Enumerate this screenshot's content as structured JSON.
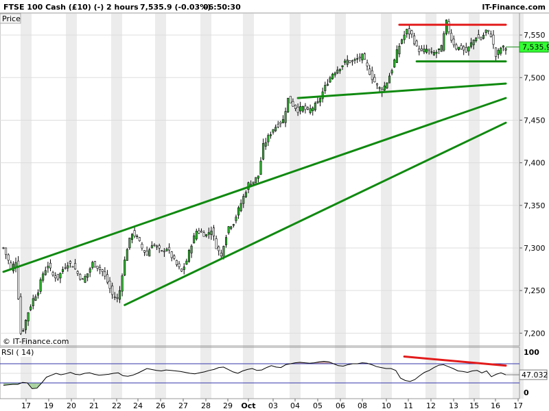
{
  "header": {
    "instrument": "FTSE 100 Cash (£10) (-)",
    "timeframe": "2 hours",
    "price_change": "7,535.9 (-0.03%)",
    "time": "06:50:30",
    "brand": "IT-Finance.com"
  },
  "price_tab": "Price",
  "watermark": "© IT-Finance.com",
  "last_price_label": "7,535.9",
  "rsi_panel": {
    "title": "RSI ( 14)",
    "current_label": "47.032",
    "tick_labels": [
      "100",
      "50",
      "0"
    ]
  },
  "x_axis_labels": [
    "17",
    "19",
    "20",
    "21",
    "22",
    "24",
    "26",
    "27",
    "28",
    "29",
    "Oct",
    "03",
    "04",
    "05",
    "06",
    "08",
    "10",
    "11",
    "12",
    "13",
    "15",
    "16",
    "17"
  ],
  "colors": {
    "candle_up": "#00a000",
    "candle_down": "#000000",
    "trendline": "#0f8a0f",
    "resistance": "#e21b1b",
    "rsi_line": "#000000",
    "rsi_overbought_fill": "#c9a6a6",
    "rsi_oversold_fill": "#a9d39e",
    "stripe": "#ececec",
    "last_price_box": "#33ff33"
  },
  "chart_data": {
    "type": "candlestick",
    "y_tick_labels": [
      "7,550",
      "7,500",
      "7,450",
      "7,400",
      "7,350",
      "7,300",
      "7,250",
      "7,200"
    ],
    "ylim": [
      7185,
      7575
    ],
    "last_price": 7535.9,
    "anchors": [
      [
        0,
        7300
      ],
      [
        2,
        7285
      ],
      [
        3,
        7275
      ],
      [
        5,
        7285
      ],
      [
        7,
        7200
      ],
      [
        8,
        7205
      ],
      [
        10,
        7225
      ],
      [
        12,
        7240
      ],
      [
        14,
        7250
      ],
      [
        16,
        7270
      ],
      [
        18,
        7280
      ],
      [
        20,
        7268
      ],
      [
        22,
        7265
      ],
      [
        24,
        7275
      ],
      [
        26,
        7282
      ],
      [
        28,
        7280
      ],
      [
        30,
        7270
      ],
      [
        32,
        7262
      ],
      [
        34,
        7270
      ],
      [
        36,
        7282
      ],
      [
        38,
        7278
      ],
      [
        40,
        7272
      ],
      [
        42,
        7260
      ],
      [
        44,
        7245
      ],
      [
        46,
        7240
      ],
      [
        47,
        7250
      ],
      [
        48,
        7270
      ],
      [
        50,
        7300
      ],
      [
        52,
        7318
      ],
      [
        54,
        7312
      ],
      [
        56,
        7300
      ],
      [
        58,
        7292
      ],
      [
        60,
        7305
      ],
      [
        62,
        7300
      ],
      [
        64,
        7295
      ],
      [
        66,
        7300
      ],
      [
        68,
        7290
      ],
      [
        70,
        7280
      ],
      [
        72,
        7272
      ],
      [
        74,
        7285
      ],
      [
        76,
        7305
      ],
      [
        78,
        7320
      ],
      [
        80,
        7318
      ],
      [
        82,
        7315
      ],
      [
        84,
        7322
      ],
      [
        86,
        7302
      ],
      [
        88,
        7290
      ],
      [
        89,
        7305
      ],
      [
        91,
        7325
      ],
      [
        93,
        7330
      ],
      [
        95,
        7345
      ],
      [
        97,
        7360
      ],
      [
        99,
        7375
      ],
      [
        101,
        7378
      ],
      [
        103,
        7385
      ],
      [
        105,
        7420
      ],
      [
        107,
        7430
      ],
      [
        109,
        7440
      ],
      [
        111,
        7445
      ],
      [
        113,
        7450
      ],
      [
        115,
        7475
      ],
      [
        117,
        7468
      ],
      [
        119,
        7462
      ],
      [
        121,
        7465
      ],
      [
        123,
        7460
      ],
      [
        125,
        7465
      ],
      [
        127,
        7470
      ],
      [
        129,
        7483
      ],
      [
        131,
        7495
      ],
      [
        133,
        7505
      ],
      [
        135,
        7510
      ],
      [
        137,
        7515
      ],
      [
        139,
        7520
      ],
      [
        141,
        7518
      ],
      [
        143,
        7522
      ],
      [
        145,
        7525
      ],
      [
        147,
        7512
      ],
      [
        149,
        7500
      ],
      [
        151,
        7490
      ],
      [
        153,
        7485
      ],
      [
        155,
        7495
      ],
      [
        157,
        7510
      ],
      [
        159,
        7530
      ],
      [
        161,
        7545
      ],
      [
        163,
        7555
      ],
      [
        165,
        7550
      ],
      [
        167,
        7535
      ],
      [
        169,
        7530
      ],
      [
        171,
        7533
      ],
      [
        173,
        7528
      ],
      [
        175,
        7530
      ],
      [
        177,
        7535
      ],
      [
        179,
        7565
      ],
      [
        181,
        7545
      ],
      [
        183,
        7535
      ],
      [
        185,
        7535
      ],
      [
        187,
        7530
      ],
      [
        189,
        7540
      ],
      [
        191,
        7548
      ],
      [
        193,
        7545
      ],
      [
        195,
        7555
      ],
      [
        197,
        7550
      ],
      [
        199,
        7525
      ],
      [
        201,
        7535
      ],
      [
        203,
        7535
      ]
    ],
    "candle_count": 204,
    "trendlines": [
      {
        "name": "upper-channel-line",
        "color": "resistance",
        "points": [
          [
            160,
            7562
          ],
          [
            203,
            7562
          ]
        ]
      },
      {
        "name": "range-support-line",
        "color": "trendline",
        "points": [
          [
            167,
            7519
          ],
          [
            203,
            7519
          ]
        ]
      },
      {
        "name": "october-support-line",
        "color": "trendline",
        "points": [
          [
            119,
            7476
          ],
          [
            203,
            7493
          ]
        ]
      },
      {
        "name": "rising-wedge-upper",
        "color": "trendline",
        "points": [
          [
            0,
            7272
          ],
          [
            203,
            7476
          ]
        ]
      },
      {
        "name": "rising-wedge-lower",
        "color": "trendline",
        "points": [
          [
            49,
            7233
          ],
          [
            203,
            7447
          ]
        ]
      }
    ],
    "rsi": {
      "period": 14,
      "ylim": [
        0,
        100
      ],
      "levels": [
        70,
        30
      ],
      "values": [
        25,
        26,
        27,
        27,
        31,
        30,
        18,
        19,
        30,
        42,
        46,
        50,
        47,
        49,
        52,
        48,
        47,
        50,
        51,
        48,
        46,
        47,
        48,
        50,
        51,
        45,
        44,
        46,
        50,
        55,
        60,
        58,
        56,
        55,
        57,
        56,
        55,
        54,
        52,
        50,
        49,
        51,
        53,
        56,
        58,
        62,
        63,
        58,
        53,
        50,
        55,
        58,
        60,
        56,
        57,
        62,
        66,
        63,
        62,
        68,
        70,
        72,
        73,
        72,
        71,
        72,
        74,
        75,
        74,
        70,
        66,
        65,
        68,
        70,
        70,
        72,
        71,
        68,
        64,
        62,
        60,
        60,
        56,
        40,
        35,
        33,
        37,
        45,
        52,
        56,
        62,
        67,
        68,
        64,
        60,
        55,
        54,
        52,
        55,
        56,
        51,
        55,
        43,
        48,
        51,
        47
      ]
    },
    "rsi_divergence_line": {
      "name": "rsi-divergence-line",
      "points": [
        [
          162,
          85
        ],
        [
          203,
          66
        ]
      ]
    }
  }
}
